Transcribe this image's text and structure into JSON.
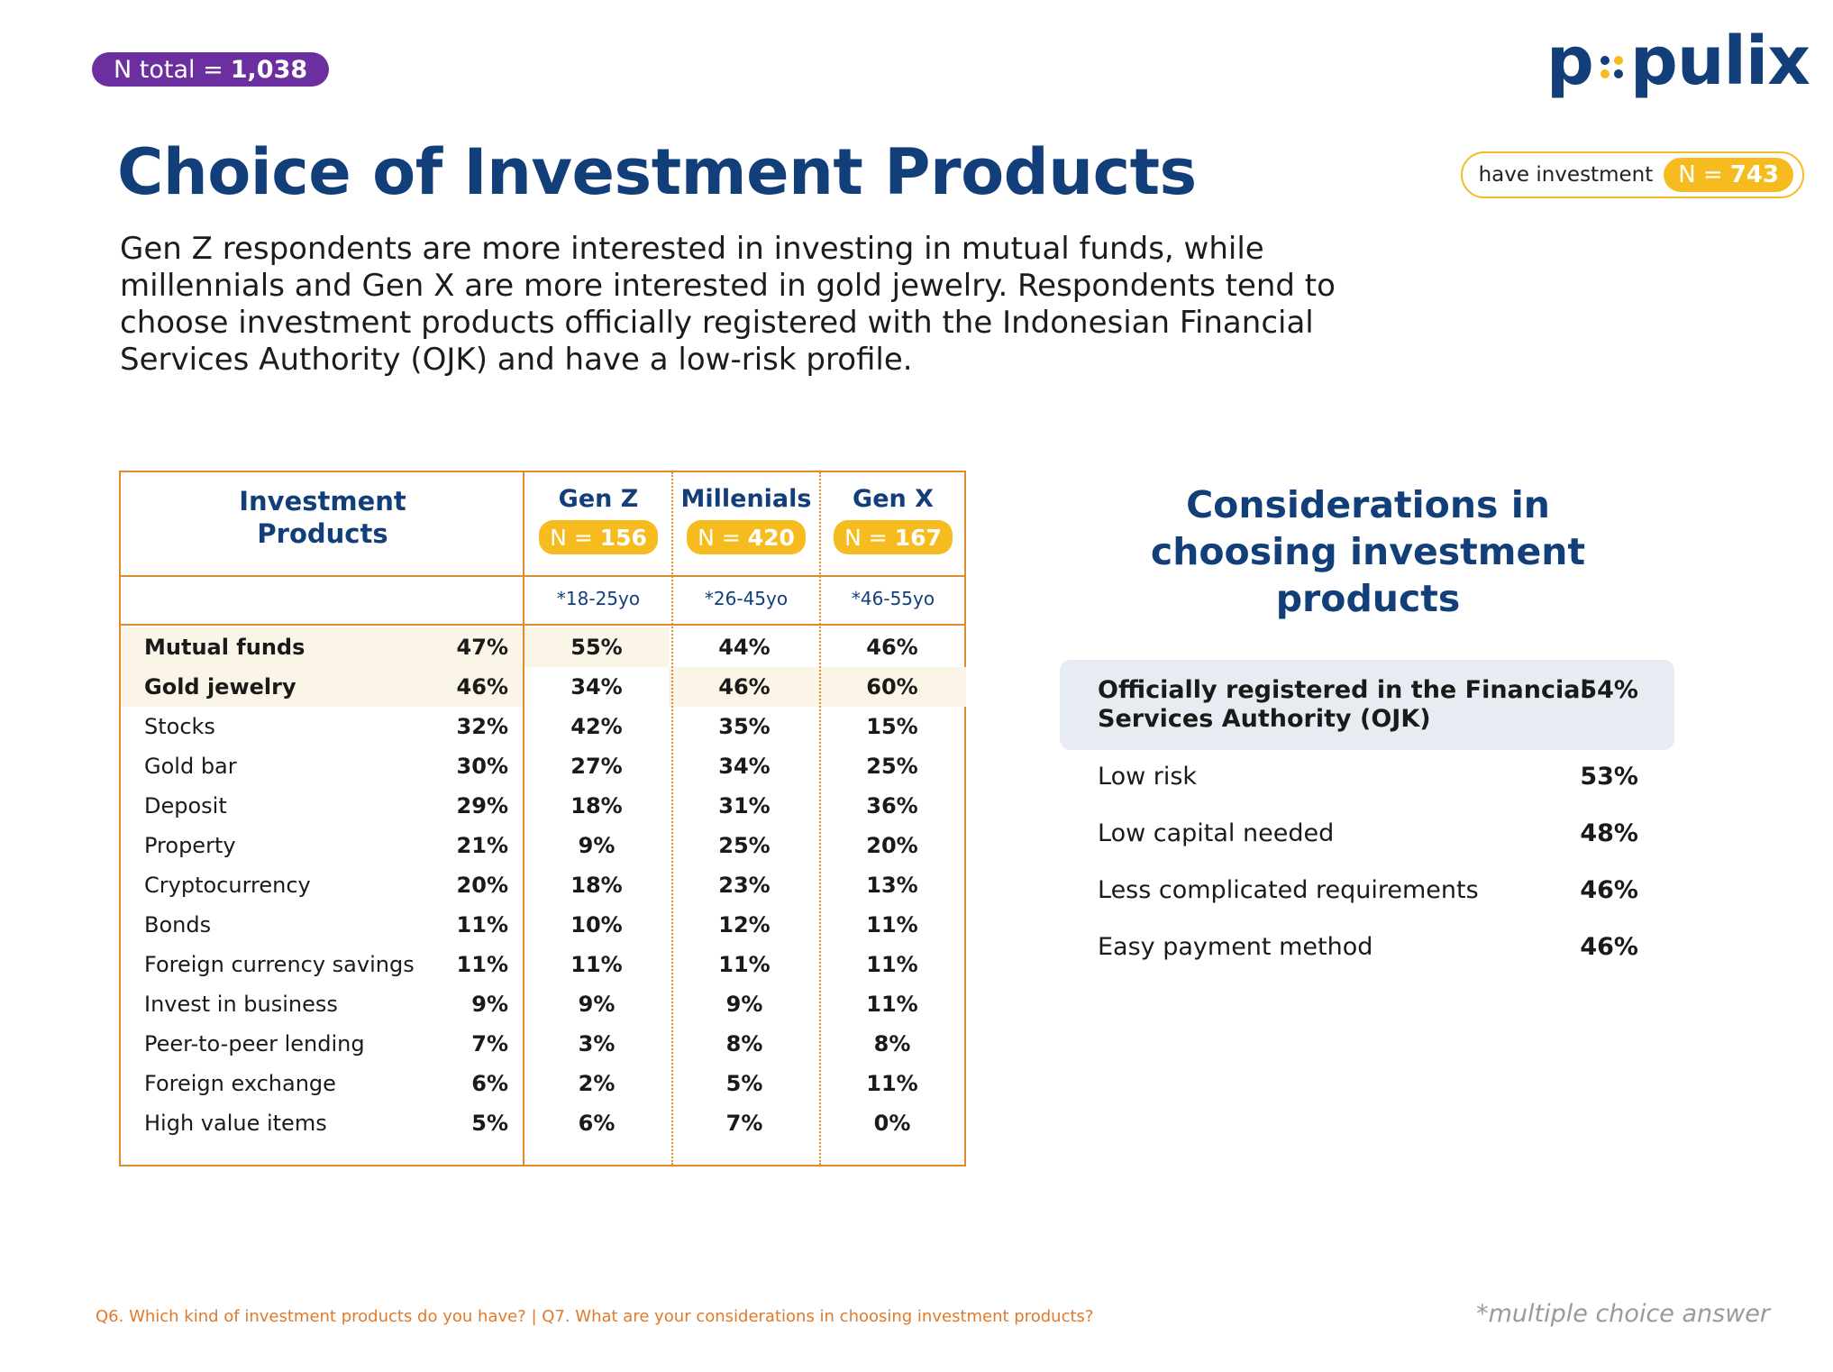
{
  "header": {
    "n_total_label": "N total =",
    "n_total_value": "1,038",
    "logo_text_left": "p",
    "logo_text_right": "pulix",
    "have_investment_label": "have investment",
    "have_investment_n_label": "N =",
    "have_investment_n_value": "743"
  },
  "title": "Choice of Investment Products",
  "description": "Gen Z respondents are more interested in investing in mutual funds, while millennials and Gen X are more interested in gold jewelry. Respondents tend to choose investment products officially registered with the Indonesian Financial Services Authority (OJK) and have a low-risk profile.",
  "table": {
    "header_line1": "Investment",
    "header_line2": "Products",
    "generations": [
      {
        "name": "Gen Z",
        "n_label": "N =",
        "n_value": "156",
        "age": "*18-25yo"
      },
      {
        "name": "Millenials",
        "n_label": "N =",
        "n_value": "420",
        "age": "*26-45yo"
      },
      {
        "name": "Gen X",
        "n_label": "N =",
        "n_value": "167",
        "age": "*46-55yo"
      }
    ],
    "rows": [
      {
        "product": "Mutual funds",
        "total": "47%",
        "genz": "55%",
        "millenials": "44%",
        "genx": "46%"
      },
      {
        "product": "Gold jewelry",
        "total": "46%",
        "genz": "34%",
        "millenials": "46%",
        "genx": "60%"
      },
      {
        "product": "Stocks",
        "total": "32%",
        "genz": "42%",
        "millenials": "35%",
        "genx": "15%"
      },
      {
        "product": "Gold bar",
        "total": "30%",
        "genz": "27%",
        "millenials": "34%",
        "genx": "25%"
      },
      {
        "product": "Deposit",
        "total": "29%",
        "genz": "18%",
        "millenials": "31%",
        "genx": "36%"
      },
      {
        "product": "Property",
        "total": "21%",
        "genz": "9%",
        "millenials": "25%",
        "genx": "20%"
      },
      {
        "product": "Cryptocurrency",
        "total": "20%",
        "genz": "18%",
        "millenials": "23%",
        "genx": "13%"
      },
      {
        "product": "Bonds",
        "total": "11%",
        "genz": "10%",
        "millenials": "12%",
        "genx": "11%"
      },
      {
        "product": "Foreign currency savings",
        "total": "11%",
        "genz": "11%",
        "millenials": "11%",
        "genx": "11%"
      },
      {
        "product": "Invest in business",
        "total": "9%",
        "genz": "9%",
        "millenials": "9%",
        "genx": "11%"
      },
      {
        "product": "Peer-to-peer lending",
        "total": "7%",
        "genz": "3%",
        "millenials": "8%",
        "genx": "8%"
      },
      {
        "product": "Foreign exchange",
        "total": "6%",
        "genz": "2%",
        "millenials": "5%",
        "genx": "11%"
      },
      {
        "product": "High value items",
        "total": "5%",
        "genz": "6%",
        "millenials": "7%",
        "genx": "0%"
      }
    ]
  },
  "considerations": {
    "title_line1": "Considerations in",
    "title_line2": "choosing investment",
    "title_line3": "products",
    "items": [
      {
        "label_line1": "Officially registered in the Financial",
        "label_line2": "Services Authority (OJK)",
        "pct": "54%"
      },
      {
        "label": "Low risk",
        "pct": "53%"
      },
      {
        "label": "Low capital needed",
        "pct": "48%"
      },
      {
        "label": "Less complicated requirements",
        "pct": "46%"
      },
      {
        "label": "Easy payment method",
        "pct": "46%"
      }
    ]
  },
  "footer": {
    "questions": "Q6. Which kind of investment products do you have? | Q7. What are your considerations in choosing investment products?",
    "note": "*multiple choice answer"
  },
  "colors": {
    "navy": "#123f79",
    "orange": "#e08a2e",
    "yellow": "#f6bc1f",
    "purple": "#6b2fa0",
    "highlight_cream": "#fbf5e7",
    "highlight_blue": "#e7ecf3"
  }
}
